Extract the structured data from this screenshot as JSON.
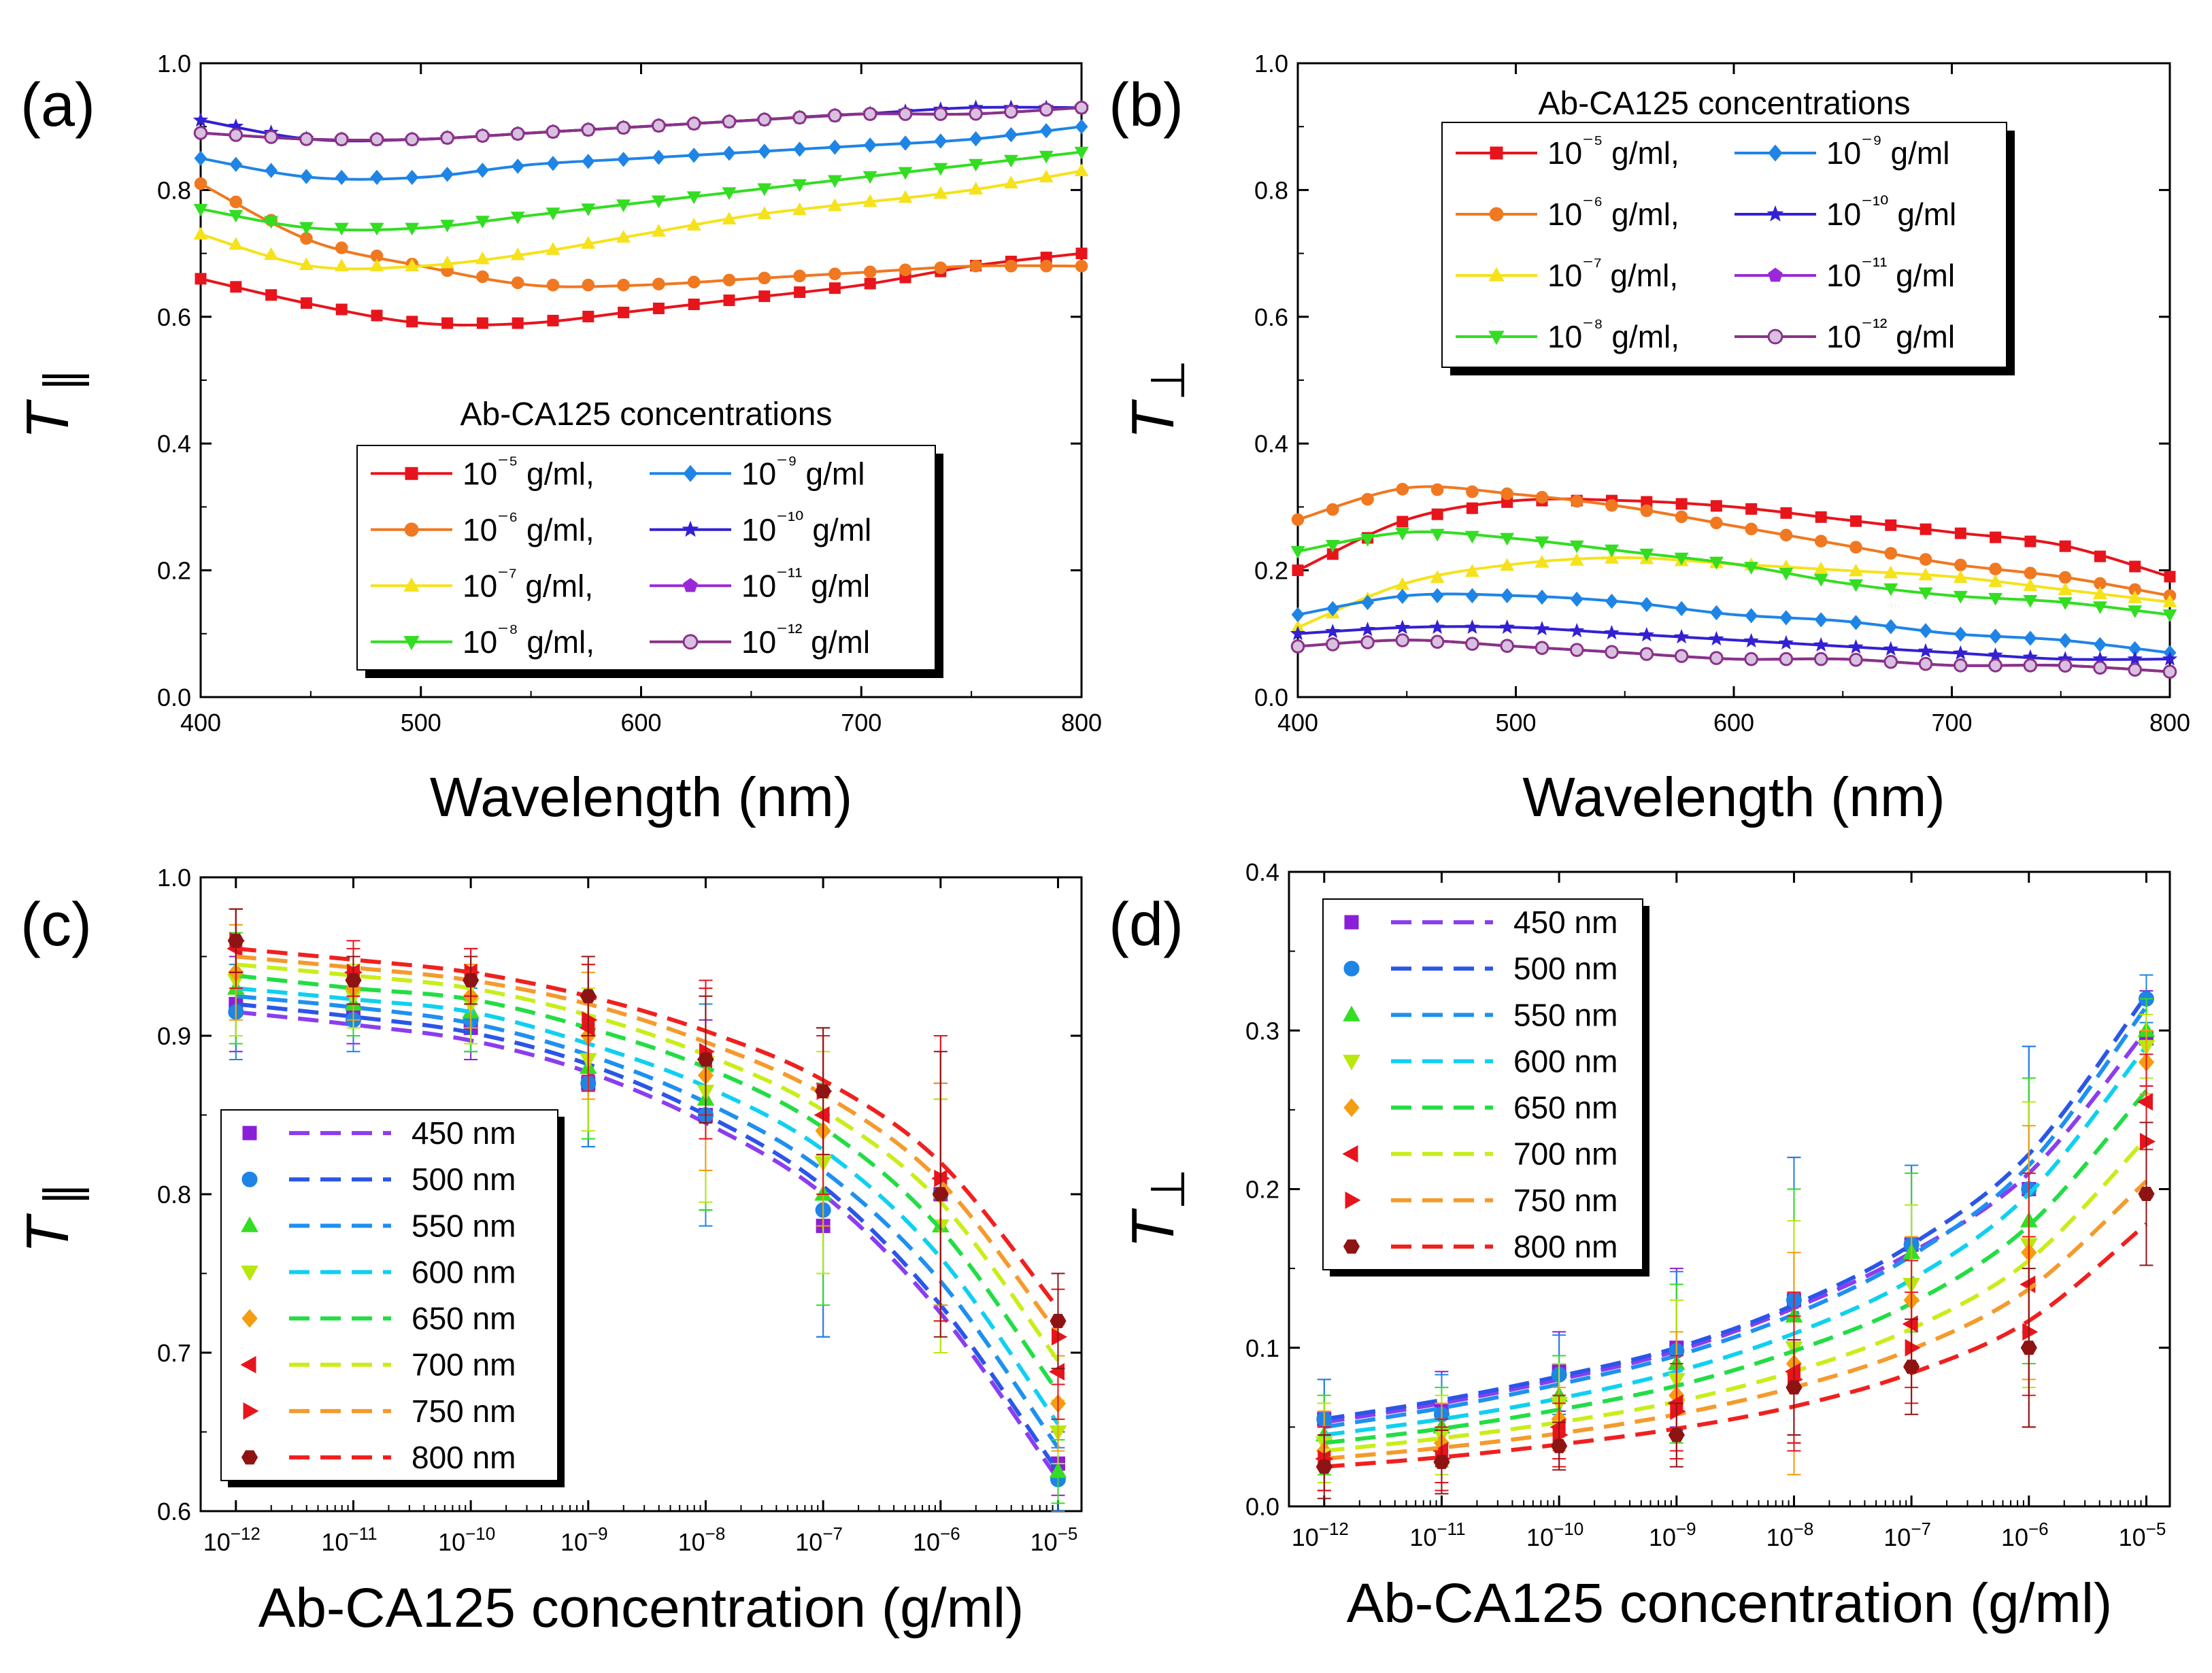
{
  "chart_data": [
    {
      "panel": "(a)",
      "type": "line",
      "xlabel": "Wavelength (nm)",
      "ylabel": "T∥",
      "xlim": [
        400,
        800
      ],
      "ylim": [
        0.0,
        1.0
      ],
      "xticks": [
        "400",
        "500",
        "600",
        "700",
        "800"
      ],
      "yticks": [
        "0.0",
        "0.2",
        "0.4",
        "0.6",
        "0.8",
        "1.0"
      ],
      "legend_title": "Ab-CA125 concentrations",
      "legend_position": "bottom-right",
      "x": [
        400,
        450,
        500,
        550,
        600,
        650,
        700,
        750,
        800
      ],
      "series": [
        {
          "name": "10⁻⁵ g/ml,",
          "color": "#e8141c",
          "marker": "square",
          "values": [
            0.66,
            0.62,
            0.59,
            0.59,
            0.61,
            0.63,
            0.65,
            0.68,
            0.7
          ]
        },
        {
          "name": "10⁻⁶ g/ml,",
          "color": "#f07820",
          "marker": "circle",
          "values": [
            0.81,
            0.72,
            0.68,
            0.65,
            0.65,
            0.66,
            0.67,
            0.68,
            0.68
          ]
        },
        {
          "name": "10⁻⁷ g/ml,",
          "color": "#f5e21a",
          "marker": "triangle-up",
          "values": [
            0.73,
            0.68,
            0.68,
            0.7,
            0.73,
            0.76,
            0.78,
            0.8,
            0.83
          ]
        },
        {
          "name": "10⁻⁸ g/ml,",
          "color": "#33dd22",
          "marker": "triangle-down",
          "values": [
            0.77,
            0.74,
            0.74,
            0.76,
            0.78,
            0.8,
            0.82,
            0.84,
            0.86
          ]
        },
        {
          "name": "10⁻⁹ g/ml",
          "color": "#1e84e6",
          "marker": "diamond",
          "values": [
            0.85,
            0.82,
            0.82,
            0.84,
            0.85,
            0.86,
            0.87,
            0.88,
            0.9
          ]
        },
        {
          "name": "10⁻¹⁰ g/ml",
          "color": "#3320d4",
          "marker": "star",
          "values": [
            0.91,
            0.88,
            0.88,
            0.89,
            0.9,
            0.91,
            0.92,
            0.93,
            0.93
          ]
        },
        {
          "name": "10⁻¹¹ g/ml",
          "color": "#9a28d8",
          "marker": "pentagon",
          "values": [
            0.89,
            0.88,
            0.88,
            0.89,
            0.9,
            0.91,
            0.92,
            0.92,
            0.93
          ]
        },
        {
          "name": "10⁻¹² g/ml",
          "color": "#8a3288",
          "marker": "circle-open",
          "values": [
            0.89,
            0.88,
            0.88,
            0.89,
            0.9,
            0.91,
            0.92,
            0.92,
            0.93
          ]
        }
      ]
    },
    {
      "panel": "(b)",
      "type": "line",
      "xlabel": "Wavelength (nm)",
      "ylabel": "T⊥",
      "xlim": [
        400,
        800
      ],
      "ylim": [
        0.0,
        1.0
      ],
      "xticks": [
        "400",
        "500",
        "600",
        "700",
        "800"
      ],
      "yticks": [
        "0.0",
        "0.2",
        "0.4",
        "0.6",
        "0.8",
        "1.0"
      ],
      "legend_title": "Ab-CA125 concentrations",
      "legend_position": "top-center",
      "x": [
        400,
        450,
        500,
        550,
        600,
        650,
        700,
        750,
        800
      ],
      "series": [
        {
          "name": "10⁻⁵ g/ml,",
          "color": "#e8141c",
          "marker": "square",
          "values": [
            0.2,
            0.28,
            0.31,
            0.31,
            0.3,
            0.28,
            0.26,
            0.24,
            0.19
          ]
        },
        {
          "name": "10⁻⁶ g/ml,",
          "color": "#f07820",
          "marker": "circle",
          "values": [
            0.28,
            0.33,
            0.32,
            0.3,
            0.27,
            0.24,
            0.21,
            0.19,
            0.16
          ]
        },
        {
          "name": "10⁻⁷ g/ml,",
          "color": "#f5e21a",
          "marker": "triangle-up",
          "values": [
            0.11,
            0.18,
            0.21,
            0.22,
            0.21,
            0.2,
            0.19,
            0.17,
            0.15
          ]
        },
        {
          "name": "10⁻⁸ g/ml,",
          "color": "#33dd22",
          "marker": "triangle-down",
          "values": [
            0.23,
            0.26,
            0.25,
            0.23,
            0.21,
            0.18,
            0.16,
            0.15,
            0.13
          ]
        },
        {
          "name": "10⁻⁹ g/ml",
          "color": "#1e84e6",
          "marker": "diamond",
          "values": [
            0.13,
            0.16,
            0.16,
            0.15,
            0.13,
            0.12,
            0.1,
            0.09,
            0.07
          ]
        },
        {
          "name": "10⁻¹⁰ g/ml",
          "color": "#3320d4",
          "marker": "star",
          "values": [
            0.1,
            0.11,
            0.11,
            0.1,
            0.09,
            0.08,
            0.07,
            0.06,
            0.06
          ]
        },
        {
          "name": "10⁻¹¹ g/ml",
          "color": "#9a28d8",
          "marker": "pentagon",
          "values": [
            0.08,
            0.09,
            0.08,
            0.07,
            0.06,
            0.06,
            0.05,
            0.05,
            0.04
          ]
        },
        {
          "name": "10⁻¹² g/ml",
          "color": "#8a3288",
          "marker": "circle-open",
          "values": [
            0.08,
            0.09,
            0.08,
            0.07,
            0.06,
            0.06,
            0.05,
            0.05,
            0.04
          ]
        }
      ]
    },
    {
      "panel": "(c)",
      "type": "scatter",
      "xlabel": "Ab-CA125 concentration (g/ml)",
      "ylabel": "T∥",
      "xscale": "log",
      "xlim_log10": [
        -12.3,
        -4.8
      ],
      "ylim": [
        0.6,
        1.0
      ],
      "xticks": [
        {
          "base": "10",
          "exp": "−12"
        },
        {
          "base": "10",
          "exp": "−11"
        },
        {
          "base": "10",
          "exp": "−10"
        },
        {
          "base": "10",
          "exp": "−9"
        },
        {
          "base": "10",
          "exp": "−8"
        },
        {
          "base": "10",
          "exp": "−7"
        },
        {
          "base": "10",
          "exp": "−6"
        },
        {
          "base": "10",
          "exp": "−5"
        }
      ],
      "yticks": [
        "0.6",
        "0.7",
        "0.8",
        "0.9",
        "1.0"
      ],
      "legend_position": "bottom-left",
      "x_log10": [
        -12,
        -11,
        -10,
        -9,
        -8,
        -7,
        -6,
        -5
      ],
      "series": [
        {
          "name": "450 nm",
          "color": "#8b1fd9",
          "fit_color": "#8b3df0",
          "marker": "square",
          "values": [
            0.92,
            0.915,
            0.905,
            0.87,
            0.85,
            0.78,
            0.8,
            0.63
          ],
          "errors": [
            0.03,
            0.02,
            0.02,
            0.04,
            0.06,
            0.07,
            0.07,
            0.02
          ],
          "fit": [
            0.915,
            0.907,
            0.897,
            0.877,
            0.845,
            0.8,
            0.725,
            0.62
          ]
        },
        {
          "name": "500 nm",
          "color": "#1e84e6",
          "fit_color": "#2a56e8",
          "marker": "circle",
          "values": [
            0.915,
            0.91,
            0.91,
            0.87,
            0.85,
            0.79,
            0.8,
            0.62
          ],
          "errors": [
            0.03,
            0.02,
            0.02,
            0.04,
            0.07,
            0.08,
            0.07,
            0.02
          ],
          "fit": [
            0.92,
            0.912,
            0.902,
            0.882,
            0.85,
            0.805,
            0.73,
            0.625
          ]
        },
        {
          "name": "550 nm",
          "color": "#33dd22",
          "fit_color": "#1e90f0",
          "marker": "triangle-up",
          "values": [
            0.93,
            0.92,
            0.915,
            0.88,
            0.86,
            0.8,
            0.78,
            0.625
          ],
          "errors": [
            0.035,
            0.02,
            0.025,
            0.045,
            0.07,
            0.07,
            0.08,
            0.02
          ],
          "fit": [
            0.925,
            0.918,
            0.908,
            0.888,
            0.858,
            0.815,
            0.745,
            0.64
          ]
        },
        {
          "name": "600 nm",
          "color": "#b8e80e",
          "fit_color": "#10d0f0",
          "marker": "triangle-down",
          "values": [
            0.935,
            0.925,
            0.92,
            0.885,
            0.865,
            0.82,
            0.78,
            0.65
          ],
          "errors": [
            0.035,
            0.02,
            0.025,
            0.045,
            0.07,
            0.07,
            0.08,
            0.02
          ],
          "fit": [
            0.93,
            0.923,
            0.915,
            0.895,
            0.868,
            0.828,
            0.76,
            0.655
          ]
        },
        {
          "name": "650 nm",
          "color": "#f59d10",
          "fit_color": "#22dd44",
          "marker": "diamond",
          "values": [
            0.94,
            0.93,
            0.925,
            0.9,
            0.875,
            0.84,
            0.8,
            0.668
          ],
          "errors": [
            0.03,
            0.02,
            0.02,
            0.04,
            0.06,
            0.06,
            0.07,
            0.03
          ],
          "fit": [
            0.938,
            0.93,
            0.923,
            0.905,
            0.88,
            0.842,
            0.778,
            0.675
          ]
        },
        {
          "name": "700 nm",
          "color": "#e8141c",
          "fit_color": "#c8ee1a",
          "marker": "triangle-left",
          "values": [
            0.955,
            0.94,
            0.94,
            0.905,
            0.885,
            0.85,
            0.81,
            0.688
          ],
          "errors": [
            0.025,
            0.02,
            0.015,
            0.04,
            0.05,
            0.05,
            0.09,
            0.03
          ],
          "fit": [
            0.945,
            0.938,
            0.93,
            0.913,
            0.888,
            0.853,
            0.795,
            0.695
          ]
        },
        {
          "name": "750 nm",
          "color": "#e8141c",
          "fit_color": "#f59a2c",
          "marker": "triangle-right",
          "values": [
            0.96,
            0.94,
            0.94,
            0.91,
            0.89,
            0.865,
            0.81,
            0.71
          ],
          "errors": [
            0.02,
            0.015,
            0.015,
            0.035,
            0.04,
            0.04,
            0.09,
            0.03
          ],
          "fit": [
            0.95,
            0.943,
            0.935,
            0.92,
            0.896,
            0.863,
            0.808,
            0.712
          ]
        },
        {
          "name": "800 nm",
          "color": "#8e1414",
          "fit_color": "#f0201e",
          "marker": "hexagon",
          "values": [
            0.96,
            0.935,
            0.935,
            0.925,
            0.885,
            0.865,
            0.8,
            0.72
          ],
          "errors": [
            0.02,
            0.015,
            0.015,
            0.025,
            0.04,
            0.04,
            0.09,
            0.03
          ],
          "fit": [
            0.955,
            0.948,
            0.94,
            0.925,
            0.903,
            0.872,
            0.82,
            0.728
          ]
        }
      ]
    },
    {
      "panel": "(d)",
      "type": "scatter",
      "xlabel": "Ab-CA125 concentration (g/ml)",
      "ylabel": "T⊥",
      "xscale": "log",
      "xlim_log10": [
        -12.3,
        -4.8
      ],
      "ylim": [
        0.0,
        0.4
      ],
      "xticks": [
        {
          "base": "10",
          "exp": "−12"
        },
        {
          "base": "10",
          "exp": "−11"
        },
        {
          "base": "10",
          "exp": "−10"
        },
        {
          "base": "10",
          "exp": "−9"
        },
        {
          "base": "10",
          "exp": "−8"
        },
        {
          "base": "10",
          "exp": "−7"
        },
        {
          "base": "10",
          "exp": "−6"
        },
        {
          "base": "10",
          "exp": "−5"
        }
      ],
      "yticks": [
        "0.0",
        "0.1",
        "0.2",
        "0.3",
        "0.4"
      ],
      "legend_position": "top-left",
      "x_log10": [
        -12,
        -11,
        -10,
        -9,
        -8,
        -7,
        -6,
        -5
      ],
      "series": [
        {
          "name": "450 nm",
          "color": "#8b1fd9",
          "fit_color": "#8b3df0",
          "marker": "square",
          "values": [
            0.055,
            0.06,
            0.085,
            0.1,
            0.13,
            0.165,
            0.2,
            0.295
          ],
          "errors": [
            0.025,
            0.025,
            0.025,
            0.05,
            0.09,
            0.05,
            0.09,
            0.03
          ],
          "fit": [
            0.053,
            0.065,
            0.08,
            0.098,
            0.125,
            0.16,
            0.21,
            0.3
          ]
        },
        {
          "name": "500 nm",
          "color": "#1e84e6",
          "fit_color": "#2a56e8",
          "marker": "circle",
          "values": [
            0.055,
            0.058,
            0.083,
            0.098,
            0.13,
            0.165,
            0.2,
            0.32
          ],
          "errors": [
            0.025,
            0.025,
            0.025,
            0.05,
            0.09,
            0.05,
            0.09,
            0.015
          ],
          "fit": [
            0.055,
            0.067,
            0.082,
            0.1,
            0.127,
            0.165,
            0.222,
            0.322
          ]
        },
        {
          "name": "550 nm",
          "color": "#33dd22",
          "fit_color": "#1e90f0",
          "marker": "triangle-up",
          "values": [
            0.045,
            0.05,
            0.07,
            0.09,
            0.12,
            0.16,
            0.18,
            0.3
          ],
          "errors": [
            0.025,
            0.025,
            0.025,
            0.05,
            0.08,
            0.05,
            0.09,
            0.02
          ],
          "fit": [
            0.05,
            0.062,
            0.077,
            0.095,
            0.121,
            0.158,
            0.215,
            0.315
          ]
        },
        {
          "name": "600 nm",
          "color": "#b8e80e",
          "fit_color": "#10d0f0",
          "marker": "triangle-down",
          "values": [
            0.04,
            0.045,
            0.065,
            0.08,
            0.1,
            0.14,
            0.165,
            0.29
          ],
          "errors": [
            0.025,
            0.025,
            0.025,
            0.05,
            0.08,
            0.05,
            0.09,
            0.02
          ],
          "fit": [
            0.045,
            0.055,
            0.068,
            0.085,
            0.109,
            0.143,
            0.197,
            0.29
          ]
        },
        {
          "name": "650 nm",
          "color": "#f59d10",
          "fit_color": "#22dd44",
          "marker": "diamond",
          "values": [
            0.035,
            0.04,
            0.055,
            0.07,
            0.09,
            0.13,
            0.16,
            0.28
          ],
          "errors": [
            0.025,
            0.025,
            0.02,
            0.04,
            0.07,
            0.04,
            0.08,
            0.02
          ],
          "fit": [
            0.04,
            0.049,
            0.061,
            0.076,
            0.098,
            0.128,
            0.177,
            0.262
          ]
        },
        {
          "name": "700 nm",
          "color": "#e8141c",
          "fit_color": "#c8ee1a",
          "marker": "triangle-left",
          "values": [
            0.03,
            0.035,
            0.05,
            0.065,
            0.085,
            0.115,
            0.14,
            0.255
          ],
          "errors": [
            0.02,
            0.02,
            0.02,
            0.03,
            0.05,
            0.04,
            0.07,
            0.03
          ],
          "fit": [
            0.035,
            0.043,
            0.053,
            0.066,
            0.085,
            0.112,
            0.155,
            0.232
          ]
        },
        {
          "name": "750 nm",
          "color": "#e8141c",
          "fit_color": "#f59a2c",
          "marker": "triangle-right",
          "values": [
            0.03,
            0.03,
            0.045,
            0.06,
            0.08,
            0.1,
            0.11,
            0.23
          ],
          "errors": [
            0.02,
            0.02,
            0.02,
            0.03,
            0.04,
            0.035,
            0.06,
            0.035
          ],
          "fit": [
            0.03,
            0.037,
            0.046,
            0.058,
            0.075,
            0.099,
            0.137,
            0.205
          ]
        },
        {
          "name": "800 nm",
          "color": "#8e1414",
          "fit_color": "#f0201e",
          "marker": "hexagon",
          "values": [
            0.025,
            0.028,
            0.038,
            0.045,
            0.075,
            0.088,
            0.1,
            0.197
          ],
          "errors": [
            0.02,
            0.02,
            0.015,
            0.02,
            0.03,
            0.03,
            0.05,
            0.045
          ],
          "fit": [
            0.025,
            0.031,
            0.039,
            0.049,
            0.063,
            0.084,
            0.117,
            0.178
          ]
        }
      ]
    }
  ]
}
